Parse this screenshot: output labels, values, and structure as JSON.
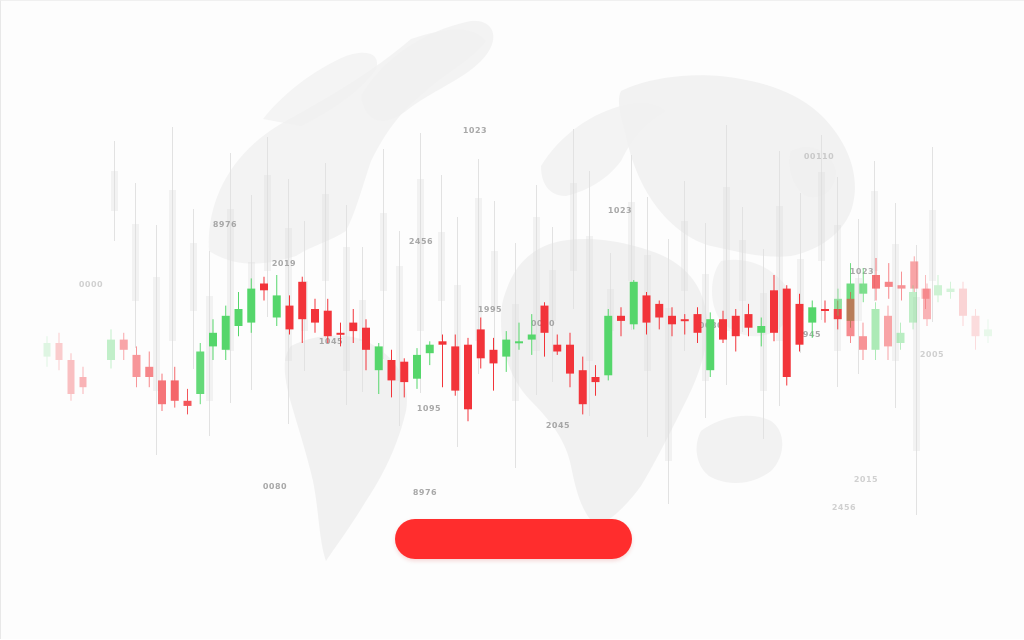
{
  "hero": {
    "cta_label": ""
  },
  "colors": {
    "up": "#55d66b",
    "down": "#f2343a",
    "background": "#fdfdfd",
    "map": "#f1f1f1",
    "cta": "#ff2d2d"
  },
  "number_labels": [
    "1023",
    "00110",
    "8976",
    "2456",
    "1023",
    "2019",
    "0000",
    "1995",
    "0080",
    "1023",
    "1045",
    "0080",
    "1945",
    "2005",
    "1095",
    "2045",
    "0080",
    "8976",
    "2015",
    "2456"
  ],
  "chart_data": {
    "type": "candlestick",
    "title": "",
    "series": [
      {
        "o": 0.3,
        "c": 0.42,
        "h": 0.48,
        "l": 0.25
      },
      {
        "o": 0.42,
        "c": 0.36,
        "h": 0.46,
        "l": 0.3
      },
      {
        "o": 0.33,
        "c": 0.2,
        "h": 0.38,
        "l": 0.14
      },
      {
        "o": 0.26,
        "c": 0.2,
        "h": 0.35,
        "l": 0.14
      },
      {
        "o": 0.18,
        "c": 0.04,
        "h": 0.22,
        "l": 0.0
      },
      {
        "o": 0.18,
        "c": 0.06,
        "h": 0.26,
        "l": 0.02
      },
      {
        "o": 0.06,
        "c": 0.03,
        "h": 0.13,
        "l": -0.02
      },
      {
        "o": 0.1,
        "c": 0.35,
        "h": 0.4,
        "l": 0.04
      },
      {
        "o": 0.38,
        "c": 0.46,
        "h": 0.54,
        "l": 0.3
      },
      {
        "o": 0.36,
        "c": 0.56,
        "h": 0.62,
        "l": 0.3
      },
      {
        "o": 0.5,
        "c": 0.6,
        "h": 0.7,
        "l": 0.44
      },
      {
        "o": 0.52,
        "c": 0.72,
        "h": 0.78,
        "l": 0.46
      },
      {
        "o": 0.75,
        "c": 0.71,
        "h": 0.79,
        "l": 0.65
      },
      {
        "o": 0.55,
        "c": 0.68,
        "h": 0.8,
        "l": 0.5
      },
      {
        "o": 0.62,
        "c": 0.48,
        "h": 0.68,
        "l": 0.45
      },
      {
        "o": 0.76,
        "c": 0.54,
        "h": 0.79,
        "l": 0.4
      },
      {
        "o": 0.6,
        "c": 0.52,
        "h": 0.66,
        "l": 0.46
      },
      {
        "o": 0.59,
        "c": 0.44,
        "h": 0.66,
        "l": 0.4
      },
      {
        "o": 0.46,
        "c": 0.45,
        "h": 0.52,
        "l": 0.38
      },
      {
        "o": 0.52,
        "c": 0.47,
        "h": 0.6,
        "l": 0.4
      },
      {
        "o": 0.49,
        "c": 0.36,
        "h": 0.54,
        "l": 0.24
      },
      {
        "o": 0.24,
        "c": 0.38,
        "h": 0.4,
        "l": 0.1
      },
      {
        "o": 0.3,
        "c": 0.18,
        "h": 0.36,
        "l": 0.08
      },
      {
        "o": 0.29,
        "c": 0.17,
        "h": 0.31,
        "l": 0.08
      },
      {
        "o": 0.19,
        "c": 0.33,
        "h": 0.37,
        "l": 0.13
      },
      {
        "o": 0.34,
        "c": 0.39,
        "h": 0.41,
        "l": 0.27
      },
      {
        "o": 0.41,
        "c": 0.39,
        "h": 0.45,
        "l": 0.14
      },
      {
        "o": 0.38,
        "c": 0.12,
        "h": 0.45,
        "l": 0.09
      },
      {
        "o": 0.39,
        "c": 0.01,
        "h": 0.43,
        "l": -0.06
      },
      {
        "o": 0.48,
        "c": 0.31,
        "h": 0.55,
        "l": 0.25
      },
      {
        "o": 0.36,
        "c": 0.28,
        "h": 0.43,
        "l": 0.12
      },
      {
        "o": 0.32,
        "c": 0.42,
        "h": 0.47,
        "l": 0.23
      },
      {
        "o": 0.41,
        "c": 0.41,
        "h": 0.52,
        "l": 0.36
      },
      {
        "o": 0.42,
        "c": 0.45,
        "h": 0.57,
        "l": 0.33
      },
      {
        "o": 0.62,
        "c": 0.46,
        "h": 0.64,
        "l": 0.32
      },
      {
        "o": 0.39,
        "c": 0.35,
        "h": 0.45,
        "l": 0.33
      },
      {
        "o": 0.39,
        "c": 0.22,
        "h": 0.46,
        "l": 0.14
      },
      {
        "o": 0.24,
        "c": 0.04,
        "h": 0.32,
        "l": -0.02
      },
      {
        "o": 0.2,
        "c": 0.17,
        "h": 0.27,
        "l": 0.09
      },
      {
        "o": 0.21,
        "c": 0.56,
        "h": 0.6,
        "l": 0.18
      },
      {
        "o": 0.56,
        "c": 0.53,
        "h": 0.61,
        "l": 0.44
      },
      {
        "o": 0.51,
        "c": 0.76,
        "h": 0.77,
        "l": 0.48
      },
      {
        "o": 0.68,
        "c": 0.52,
        "h": 0.7,
        "l": 0.45
      },
      {
        "o": 0.63,
        "c": 0.55,
        "h": 0.65,
        "l": 0.48
      },
      {
        "o": 0.56,
        "c": 0.51,
        "h": 0.61,
        "l": 0.44
      },
      {
        "o": 0.54,
        "c": 0.53,
        "h": 0.57,
        "l": 0.45
      },
      {
        "o": 0.57,
        "c": 0.46,
        "h": 0.61,
        "l": 0.4
      },
      {
        "o": 0.24,
        "c": 0.54,
        "h": 0.58,
        "l": 0.2
      },
      {
        "o": 0.54,
        "c": 0.42,
        "h": 0.59,
        "l": 0.4
      },
      {
        "o": 0.56,
        "c": 0.44,
        "h": 0.6,
        "l": 0.35
      },
      {
        "o": 0.57,
        "c": 0.49,
        "h": 0.63,
        "l": 0.44
      },
      {
        "o": 0.46,
        "c": 0.5,
        "h": 0.55,
        "l": 0.38
      },
      {
        "o": 0.71,
        "c": 0.46,
        "h": 0.8,
        "l": 0.41
      },
      {
        "o": 0.72,
        "c": 0.2,
        "h": 0.74,
        "l": 0.15
      },
      {
        "o": 0.63,
        "c": 0.39,
        "h": 0.69,
        "l": 0.35
      },
      {
        "o": 0.52,
        "c": 0.61,
        "h": 0.65,
        "l": 0.43
      },
      {
        "o": 0.6,
        "c": 0.59,
        "h": 0.65,
        "l": 0.52
      },
      {
        "o": 0.6,
        "c": 0.54,
        "h": 0.65,
        "l": 0.48
      },
      {
        "o": 0.53,
        "c": 0.75,
        "h": 0.87,
        "l": 0.49
      },
      {
        "o": 0.69,
        "c": 0.75,
        "h": 0.84,
        "l": 0.64
      },
      {
        "o": 0.8,
        "c": 0.72,
        "h": 0.9,
        "l": 0.65
      },
      {
        "o": 0.76,
        "c": 0.73,
        "h": 0.87,
        "l": 0.66
      },
      {
        "o": 0.74,
        "c": 0.72,
        "h": 0.82,
        "l": 0.65
      },
      {
        "o": 0.88,
        "c": 0.72,
        "h": 0.91,
        "l": 0.7
      },
      {
        "o": 0.72,
        "c": 0.54,
        "h": 0.75,
        "l": 0.5
      }
    ],
    "faded_left": [
      {
        "o": 0.32,
        "c": 0.4,
        "h": 0.44,
        "l": 0.26
      },
      {
        "o": 0.4,
        "c": 0.3,
        "h": 0.46,
        "l": 0.24
      },
      {
        "o": 0.3,
        "c": 0.1,
        "h": 0.34,
        "l": 0.06
      },
      {
        "o": 0.2,
        "c": 0.14,
        "h": 0.26,
        "l": 0.1
      }
    ],
    "faded_right": [
      {
        "o": 0.6,
        "c": 0.66,
        "h": 0.72,
        "l": 0.56
      },
      {
        "o": 0.66,
        "c": 0.44,
        "h": 0.7,
        "l": 0.4
      },
      {
        "o": 0.44,
        "c": 0.36,
        "h": 0.52,
        "l": 0.3
      },
      {
        "o": 0.36,
        "c": 0.6,
        "h": 0.64,
        "l": 0.3
      },
      {
        "o": 0.56,
        "c": 0.38,
        "h": 0.62,
        "l": 0.3
      },
      {
        "o": 0.4,
        "c": 0.46,
        "h": 0.52,
        "l": 0.36
      },
      {
        "o": 0.52,
        "c": 0.7,
        "h": 0.74,
        "l": 0.48
      },
      {
        "o": 0.72,
        "c": 0.66,
        "h": 0.8,
        "l": 0.6
      },
      {
        "o": 0.68,
        "c": 0.74,
        "h": 0.8,
        "l": 0.64
      },
      {
        "o": 0.7,
        "c": 0.72,
        "h": 0.76,
        "l": 0.66
      },
      {
        "o": 0.72,
        "c": 0.56,
        "h": 0.76,
        "l": 0.5
      },
      {
        "o": 0.56,
        "c": 0.44,
        "h": 0.6,
        "l": 0.36
      },
      {
        "o": 0.44,
        "c": 0.48,
        "h": 0.54,
        "l": 0.4
      }
    ],
    "ylim": [
      0,
      1
    ]
  }
}
